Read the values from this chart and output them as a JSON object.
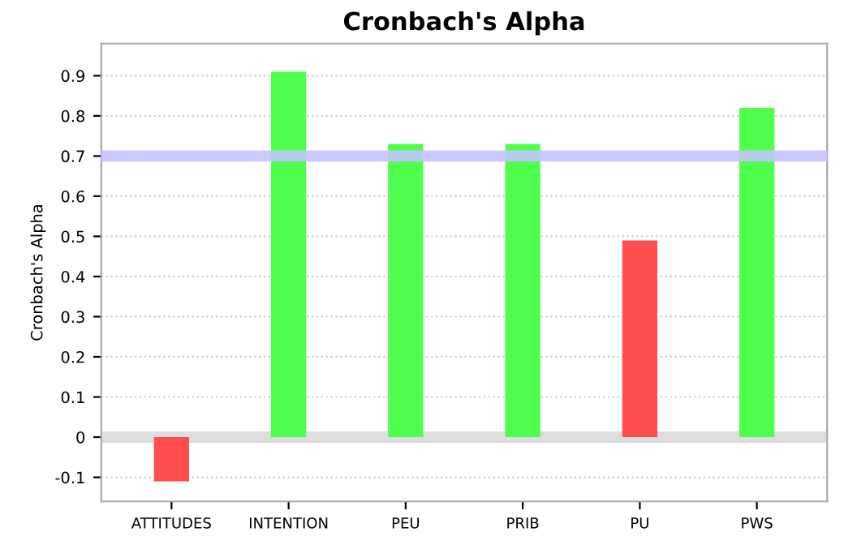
{
  "chart_data": {
    "type": "bar",
    "title": "Cronbach's Alpha",
    "ylabel": "Cronbach's Alpha",
    "categories": [
      "ATTITUDES",
      "INTENTION",
      "PEU",
      "PRIB",
      "PU",
      "PWS"
    ],
    "values": [
      -0.11,
      0.91,
      0.73,
      0.73,
      0.49,
      0.82
    ],
    "colors": [
      "#ff4444",
      "#44ff44",
      "#44ff44",
      "#44ff44",
      "#ff4444",
      "#44ff44"
    ],
    "ylim": [
      -0.16,
      0.98
    ],
    "yticks": [
      -0.1,
      0,
      0.1,
      0.2,
      0.3,
      0.4,
      0.5,
      0.6,
      0.7,
      0.8,
      0.9
    ],
    "ref_lines": [
      {
        "axis": "y",
        "value": 0.7,
        "color": "#c4c4ff"
      }
    ],
    "grid": "y",
    "legend": false
  }
}
